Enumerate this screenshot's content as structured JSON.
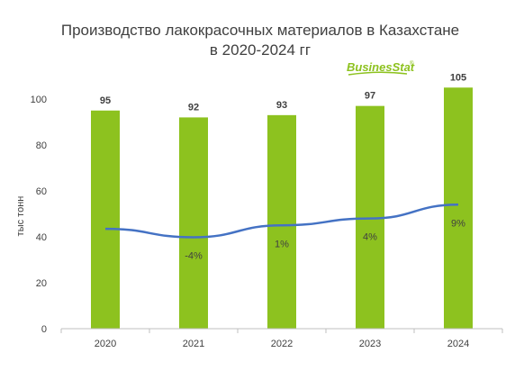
{
  "colors": {
    "bar": "#8dc21f",
    "line": "#4472c4",
    "axis": "#bfbfbf",
    "text": "#404040"
  },
  "logo": {
    "text": "BusinesStat",
    "reg": "®"
  },
  "chart_data": {
    "type": "bar",
    "title": [
      "Производство лакокрасочных материалов в Казахстане",
      "в 2020-2024 гг"
    ],
    "ylabel": "тыс тонн",
    "xlabel": "",
    "categories": [
      "2020",
      "2021",
      "2022",
      "2023",
      "2024"
    ],
    "values": [
      95,
      92,
      93,
      97,
      105
    ],
    "value_labels": [
      "95",
      "92",
      "93",
      "97",
      "105"
    ],
    "ylim": [
      0,
      100
    ],
    "yticks": [
      0,
      20,
      40,
      60,
      80,
      100
    ],
    "grid": false,
    "growth_line": {
      "labels": [
        "",
        "-4%",
        "1%",
        "4%",
        "9%"
      ],
      "values": [
        43.5,
        39.8,
        45,
        48,
        54
      ]
    }
  }
}
